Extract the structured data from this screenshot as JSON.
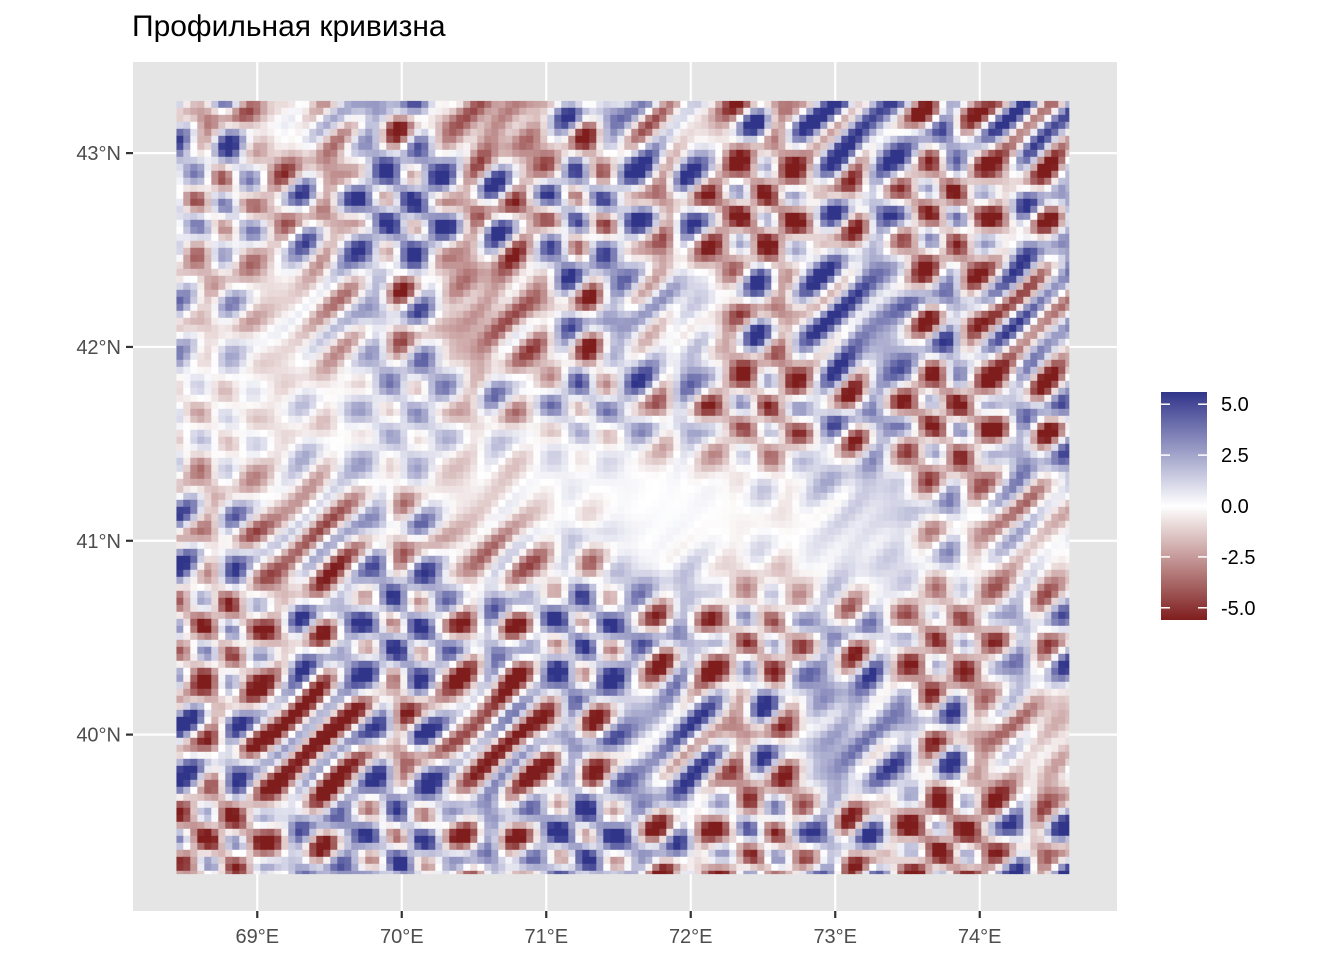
{
  "title": "Профильная кривизна",
  "map": {
    "x_axis": {
      "ticks": [
        {
          "value": 69,
          "label": "69°E"
        },
        {
          "value": 70,
          "label": "70°E"
        },
        {
          "value": 71,
          "label": "71°E"
        },
        {
          "value": 72,
          "label": "72°E"
        },
        {
          "value": 73,
          "label": "73°E"
        },
        {
          "value": 74,
          "label": "74°E"
        }
      ],
      "range": [
        68.14,
        74.95
      ]
    },
    "y_axis": {
      "ticks": [
        {
          "value": 40,
          "label": "40°N"
        },
        {
          "value": 41,
          "label": "41°N"
        },
        {
          "value": 42,
          "label": "42°N"
        },
        {
          "value": 43,
          "label": "43°N"
        }
      ],
      "range": [
        39.09,
        43.47
      ]
    },
    "raster_extent": {
      "lon": [
        68.44,
        74.62
      ],
      "lat": [
        39.28,
        43.27
      ]
    },
    "panel_color": "#e5e5e5",
    "grid_color": "#ffffff",
    "palette": {
      "low": "#7f1d1d",
      "mid": "#ffffff",
      "high": "#31358a"
    }
  },
  "legend": {
    "limits": [
      -5.6,
      5.6
    ],
    "ticks": [
      {
        "value": 5.0,
        "label": "5.0"
      },
      {
        "value": 2.5,
        "label": "2.5"
      },
      {
        "value": 0.0,
        "label": "0.0"
      },
      {
        "value": -2.5,
        "label": "-2.5"
      },
      {
        "value": -5.0,
        "label": "-5.0"
      }
    ]
  }
}
